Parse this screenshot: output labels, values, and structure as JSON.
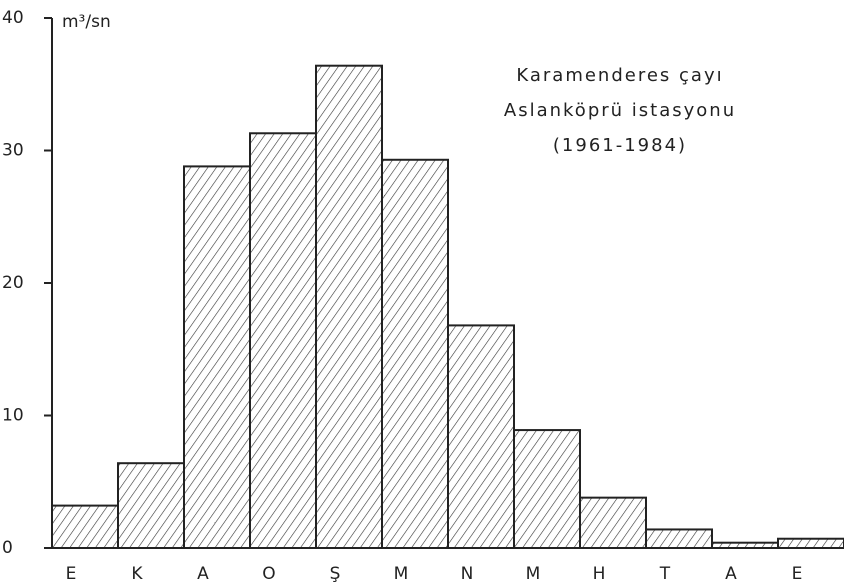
{
  "chart_data": {
    "type": "bar",
    "y_label": "m³/sn",
    "annotations": [
      "Karamenderes çayı",
      "Aslanköprü istasyonu",
      "(1961-1984)"
    ],
    "categories": [
      "E",
      "K",
      "A",
      "O",
      "Ş",
      "M",
      "N",
      "M",
      "H",
      "T",
      "A",
      "E"
    ],
    "values": [
      3.2,
      6.4,
      28.8,
      31.3,
      36.4,
      29.3,
      16.8,
      8.9,
      3.8,
      1.4,
      0.4,
      0.7
    ],
    "color": "#222222",
    "ylim": [
      0,
      40
    ],
    "yticks": [
      0,
      10,
      20,
      30,
      40
    ],
    "grid": false
  }
}
